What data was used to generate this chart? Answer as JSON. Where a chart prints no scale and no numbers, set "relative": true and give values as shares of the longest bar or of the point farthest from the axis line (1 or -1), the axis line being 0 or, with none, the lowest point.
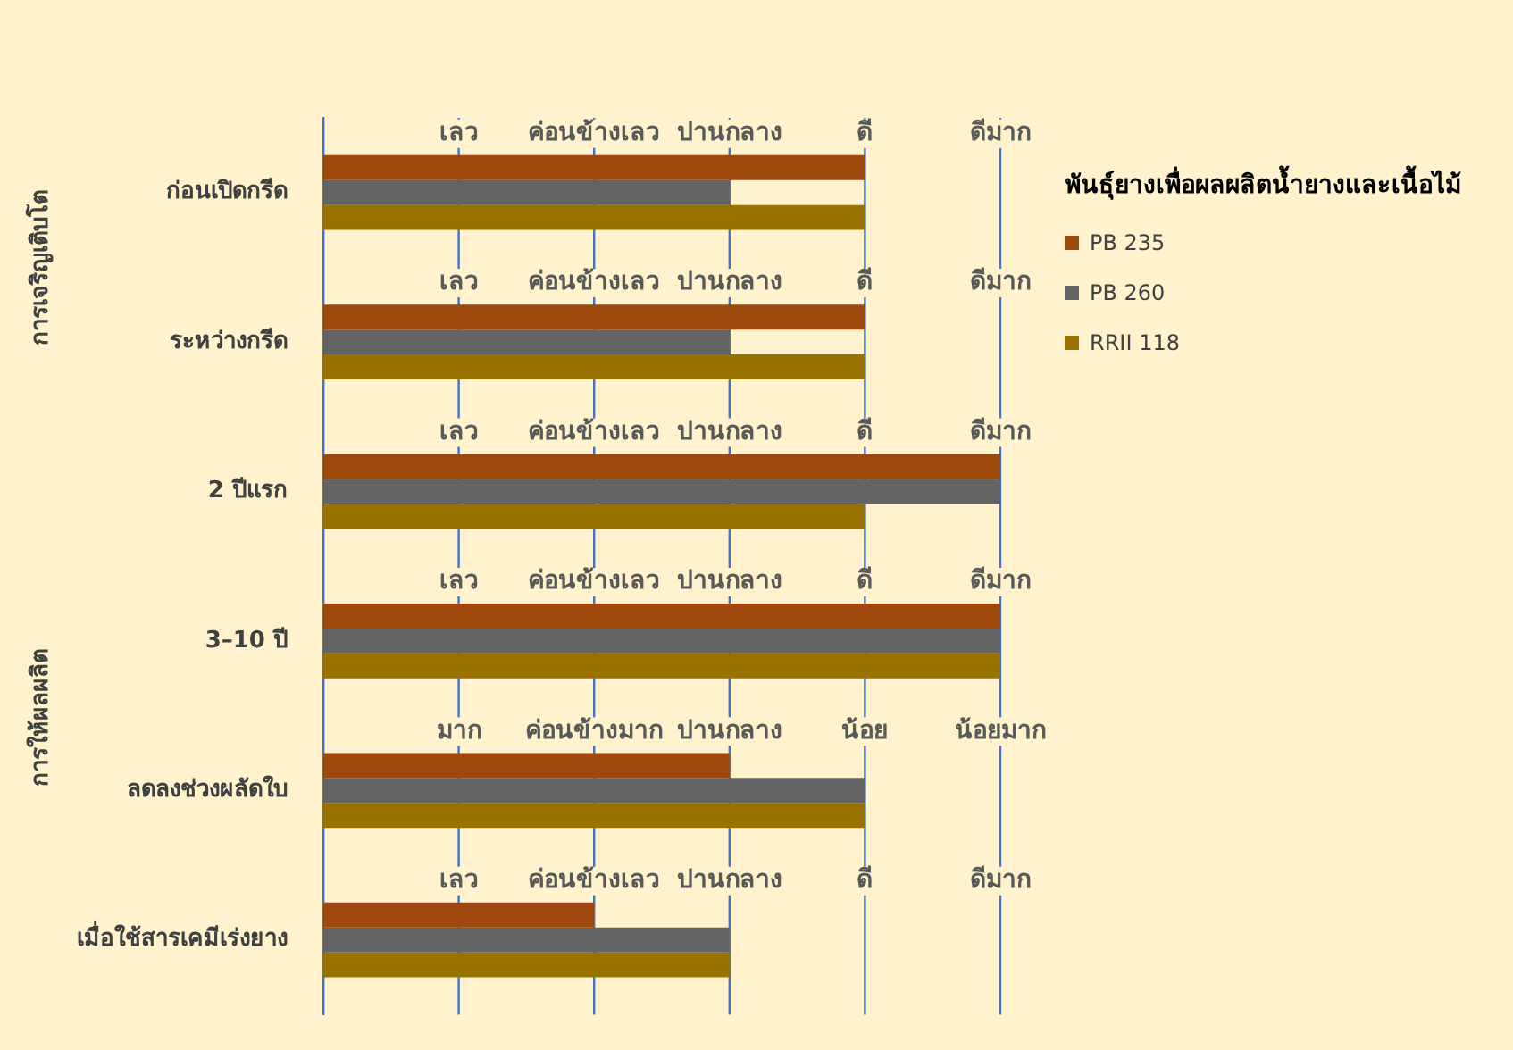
{
  "chart_data": {
    "type": "bar",
    "orientation": "horizontal",
    "relative": true,
    "categories": [
      "ก่อนเปิดกรีด",
      "ระหว่างกรีด",
      "2 ปีแรก",
      "3–10 ปี",
      "ลดลงช่วงผลัดใบ",
      "เมื่อใช้สารเคมีเร่งยาง"
    ],
    "legend": "right",
    "legend_title": "พันธุ์ยางเพื่อผลผลิตน้ำยางและเนื้อไม้",
    "series": [
      {
        "name": "PB 235",
        "color": "#9e480e",
        "values": [
          0.8,
          0.8,
          1,
          1,
          0.6,
          0.4
        ]
      },
      {
        "name": "PB 260",
        "color": "#636363",
        "values": [
          0.6,
          0.6,
          1,
          1,
          0.8,
          0.6
        ]
      },
      {
        "name": "RRII 118",
        "color": "#997300",
        "values": [
          0.8,
          0.8,
          0.8,
          1,
          0.8,
          0.6
        ]
      }
    ],
    "ref_lines": [
      {
        "axis": "x",
        "value": 0.2,
        "color": "#4472c4"
      },
      {
        "axis": "x",
        "value": 0.4,
        "color": "#4472c4"
      },
      {
        "axis": "x",
        "value": 0.6,
        "color": "#4472c4"
      },
      {
        "axis": "x",
        "value": 0.8,
        "color": "#4472c4"
      },
      {
        "axis": "x",
        "value": 1,
        "color": "#4472c4"
      }
    ],
    "annotations": [
      "การเจริญเติบโต",
      "การให้ผลผลิต",
      {
        "text": "เลว",
        "x": 0.2,
        "y": "ก่อนเปิดกรีด"
      },
      {
        "text": "ค่อนข้างเลว",
        "x": 0.4,
        "y": "ก่อนเปิดกรีด"
      },
      {
        "text": "ปานกลาง",
        "x": 0.6,
        "y": "ก่อนเปิดกรีด"
      },
      {
        "text": "ดี",
        "x": 0.8,
        "y": "ก่อนเปิดกรีด"
      },
      {
        "text": "ดีมาก",
        "x": 1,
        "y": "ก่อนเปิดกรีด"
      },
      {
        "text": "เลว",
        "x": 0.2,
        "y": "ระหว่างกรีด"
      },
      {
        "text": "ค่อนข้างเลว",
        "x": 0.4,
        "y": "ระหว่างกรีด"
      },
      {
        "text": "ปานกลาง",
        "x": 0.6,
        "y": "ระหว่างกรีด"
      },
      {
        "text": "ดี",
        "x": 0.8,
        "y": "ระหว่างกรีด"
      },
      {
        "text": "ดีมาก",
        "x": 1,
        "y": "ระหว่างกรีด"
      },
      {
        "text": "เลว",
        "x": 0.2,
        "y": "2 ปีแรก"
      },
      {
        "text": "ค่อนข้างเลว",
        "x": 0.4,
        "y": "2 ปีแรก"
      },
      {
        "text": "ปานกลาง",
        "x": 0.6,
        "y": "2 ปีแรก"
      },
      {
        "text": "ดี",
        "x": 0.8,
        "y": "2 ปีแรก"
      },
      {
        "text": "ดีมาก",
        "x": 1,
        "y": "2 ปีแรก"
      },
      {
        "text": "เลว",
        "x": 0.2,
        "y": "3–10 ปี"
      },
      {
        "text": "ค่อนข้างเลว",
        "x": 0.4,
        "y": "3–10 ปี"
      },
      {
        "text": "ปานกลาง",
        "x": 0.6,
        "y": "3–10 ปี"
      },
      {
        "text": "ดี",
        "x": 0.8,
        "y": "3–10 ปี"
      },
      {
        "text": "ดีมาก",
        "x": 1,
        "y": "3–10 ปี"
      },
      {
        "text": "มาก",
        "x": 0.2,
        "y": "ลดลงช่วงผลัดใบ"
      },
      {
        "text": "ค่อนข้างมาก",
        "x": 0.4,
        "y": "ลดลงช่วงผลัดใบ"
      },
      {
        "text": "ปานกลาง",
        "x": 0.6,
        "y": "ลดลงช่วงผลัดใบ"
      },
      {
        "text": "น้อย",
        "x": 0.8,
        "y": "ลดลงช่วงผลัดใบ"
      },
      {
        "text": "น้อยมาก",
        "x": 1,
        "y": "ลดลงช่วงผลัดใบ"
      },
      {
        "text": "เลว",
        "x": 0.2,
        "y": "เมื่อใช้สารเคมีเร่งยาง"
      },
      {
        "text": "ค่อนข้างเลว",
        "x": 0.4,
        "y": "เมื่อใช้สารเคมีเร่งยาง"
      },
      {
        "text": "ปานกลาง",
        "x": 0.6,
        "y": "เมื่อใช้สารเคมีเร่งยาง"
      },
      {
        "text": "ดี",
        "x": 0.8,
        "y": "เมื่อใช้สารเคมีเร่งยาง"
      },
      {
        "text": "ดีมาก",
        "x": 1,
        "y": "เมื่อใช้สารเคมีเร่งยาง"
      }
    ]
  }
}
